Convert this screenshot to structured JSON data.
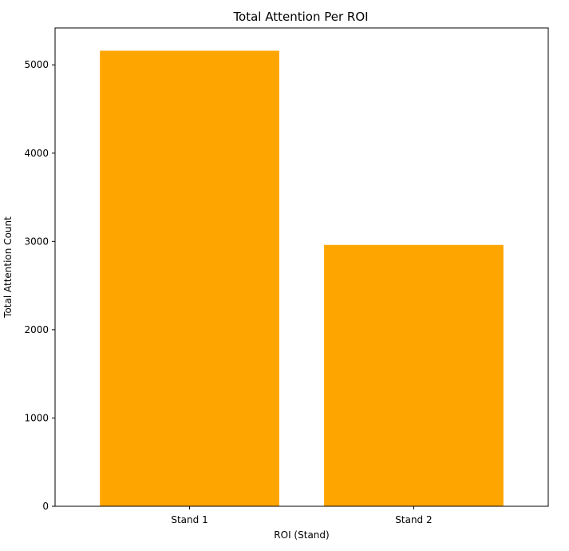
{
  "chart_data": {
    "type": "bar",
    "title": "Total Attention Per ROI",
    "xlabel": "ROI (Stand)",
    "ylabel": "Total Attention Count",
    "categories": [
      "Stand 1",
      "Stand 2"
    ],
    "values": [
      5160,
      2960
    ],
    "ylim": [
      0,
      5418
    ],
    "yticks": [
      0,
      1000,
      2000,
      3000,
      4000,
      5000
    ],
    "grid": false,
    "bar_color": "#ffa500"
  }
}
